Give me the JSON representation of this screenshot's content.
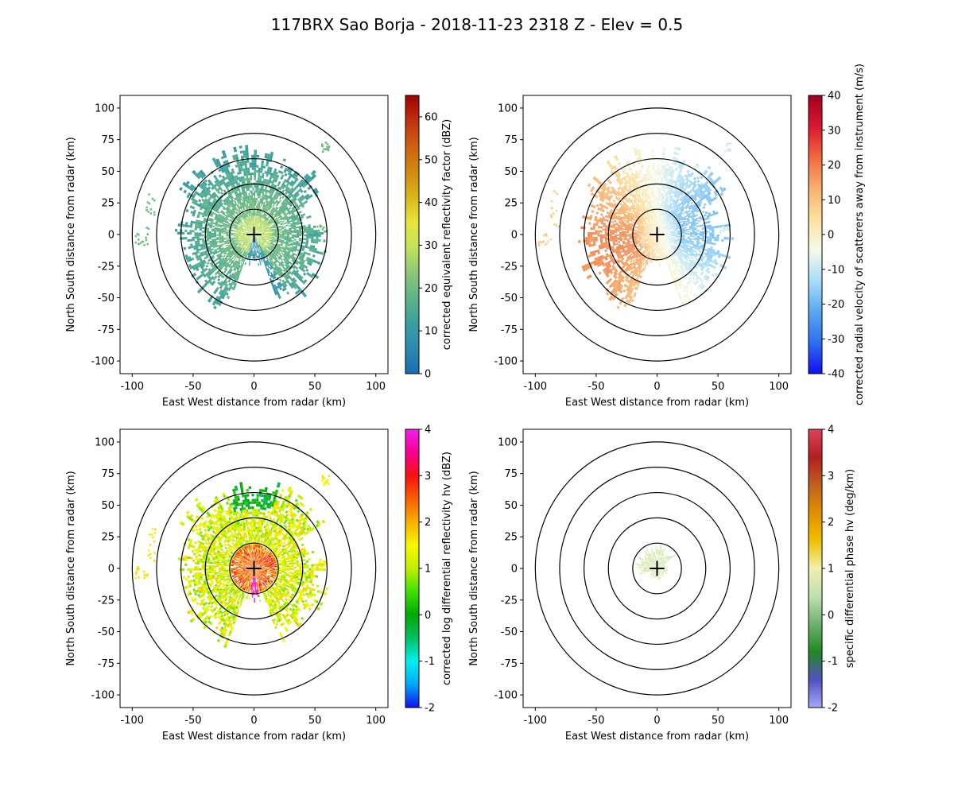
{
  "title": "117BRX Sao Borja - 2018-11-23 2318 Z -  Elev = 0.5",
  "chart_data": [
    {
      "type": "heatmap",
      "id": "reflectivity",
      "xlabel": "East West distance from radar (km)",
      "ylabel": "North South distance from radar (km)",
      "xlim": [
        -110,
        110
      ],
      "ylim": [
        -110,
        110
      ],
      "xticks": [
        "-100",
        "-50",
        "0",
        "50",
        "100"
      ],
      "yticks": [
        "-100",
        "-75",
        "-50",
        "-25",
        "0",
        "25",
        "50",
        "75",
        "100"
      ],
      "range_rings_km": [
        20,
        40,
        60,
        80,
        100
      ],
      "colorbar": {
        "label": "corrected equivalent reflectivity factor (dBZ)",
        "min": 0,
        "max": 65,
        "ticks": [
          "0",
          "10",
          "20",
          "30",
          "40",
          "50",
          "60"
        ],
        "colors": [
          "#1a6db0",
          "#2a8ab0",
          "#3aa0a0",
          "#5fb486",
          "#8cc878",
          "#c4e25a",
          "#e9e43a",
          "#d9b41c",
          "#d08a10",
          "#d06010",
          "#c03010",
          "#a00000"
        ]
      },
      "echo_extent_note": "echo mostly within ~70 km, strongest N and W"
    },
    {
      "type": "heatmap",
      "id": "velocity",
      "xlabel": "East West distance from radar (km)",
      "ylabel": "North South distance from radar (km)",
      "xlim": [
        -110,
        110
      ],
      "ylim": [
        -110,
        110
      ],
      "xticks": [
        "-100",
        "-50",
        "0",
        "50",
        "100"
      ],
      "yticks": [
        "-100",
        "-75",
        "-50",
        "-25",
        "0",
        "25",
        "50",
        "75",
        "100"
      ],
      "range_rings_km": [
        20,
        40,
        60,
        80,
        100
      ],
      "colorbar": {
        "label": "corrected radial velocity of scatterers away from instrument (m/s)",
        "min": -40,
        "max": 40,
        "ticks": [
          "-40",
          "-30",
          "-20",
          "-10",
          "0",
          "10",
          "20",
          "30",
          "40"
        ],
        "colors": [
          "#1010f0",
          "#2e6ef0",
          "#5aa8f0",
          "#a8dcf8",
          "#f6fbe8",
          "#fde0a0",
          "#f8b070",
          "#f06a40",
          "#d81830",
          "#a00020"
        ]
      }
    },
    {
      "type": "heatmap",
      "id": "zdr",
      "xlabel": "East West distance from radar (km)",
      "ylabel": "North South distance from radar (km)",
      "xlim": [
        -110,
        110
      ],
      "ylim": [
        -110,
        110
      ],
      "xticks": [
        "-100",
        "-50",
        "0",
        "50",
        "100"
      ],
      "yticks": [
        "-100",
        "-75",
        "-50",
        "-25",
        "0",
        "25",
        "50",
        "75",
        "100"
      ],
      "range_rings_km": [
        20,
        40,
        60,
        80,
        100
      ],
      "colorbar": {
        "label": "corrected log differential reflectivity hv (dBZ)",
        "min": -2,
        "max": 4,
        "ticks": [
          "-2",
          "-1",
          "0",
          "1",
          "2",
          "3",
          "4"
        ],
        "colors": [
          "#1010f0",
          "#00a8f8",
          "#00f0f0",
          "#00c060",
          "#00a800",
          "#40e000",
          "#c0f000",
          "#f8f800",
          "#f8b000",
          "#f86000",
          "#f81010",
          "#f80090",
          "#f020f0"
        ]
      }
    },
    {
      "type": "heatmap",
      "id": "kdp",
      "xlabel": "East West distance from radar (km)",
      "ylabel": "North South distance from radar (km)",
      "xlim": [
        -110,
        110
      ],
      "ylim": [
        -110,
        110
      ],
      "xticks": [
        "-100",
        "-50",
        "0",
        "50",
        "100"
      ],
      "yticks": [
        "-100",
        "-75",
        "-50",
        "-25",
        "0",
        "25",
        "50",
        "75",
        "100"
      ],
      "range_rings_km": [
        20,
        40,
        60,
        80,
        100
      ],
      "colorbar": {
        "label": "specific differential phase hv (deg/km)",
        "min": -2,
        "max": 4,
        "ticks": [
          "-2",
          "-1",
          "0",
          "1",
          "2",
          "3",
          "4"
        ],
        "colors": [
          "#a8a8f8",
          "#5050c0",
          "#208820",
          "#70b070",
          "#c0e0b0",
          "#f0f0b0",
          "#f0c000",
          "#e09000",
          "#c06020",
          "#b02020",
          "#e04060"
        ]
      }
    }
  ]
}
